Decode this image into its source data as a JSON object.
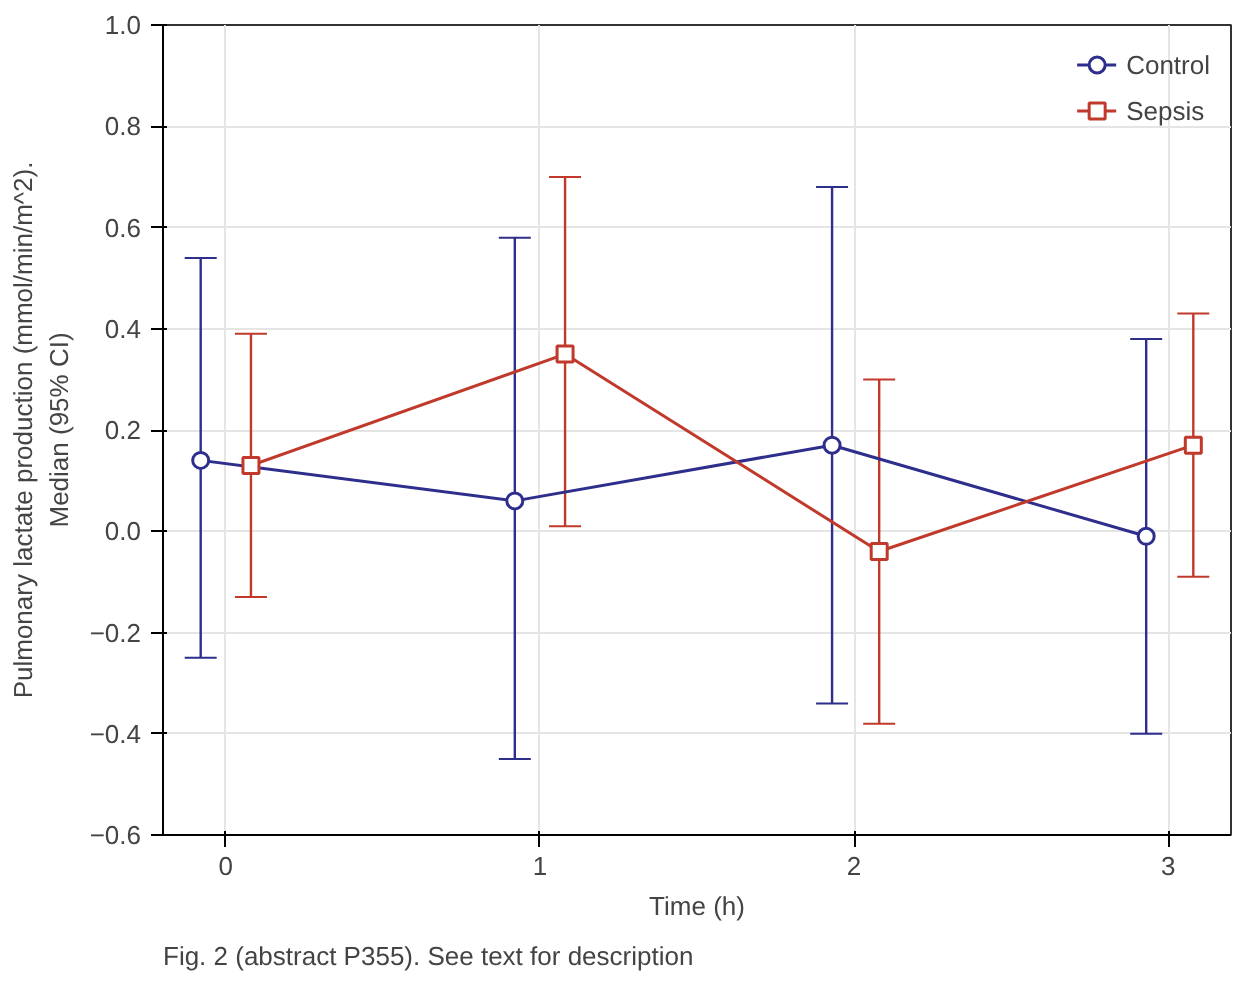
{
  "chart_data": {
    "type": "line",
    "xlabel": "Time (h)",
    "ylabel": "Pulmonary lactate production (mmol/min/m^2).\nMedian (95% CI)",
    "xlim": [
      -0.2,
      3.2
    ],
    "xticks": [
      0,
      1,
      2,
      3
    ],
    "ylim": [
      -0.6,
      1.0
    ],
    "yticks": [
      -0.6,
      -0.4,
      -0.2,
      {
        "value": 0,
        "label": "0.0"
      },
      0.2,
      0.4,
      0.6,
      0.8,
      {
        "value": 1,
        "label": "1.0"
      }
    ],
    "grid": true,
    "legend": "top right",
    "series": [
      {
        "name": "Control",
        "color": "#2e2e8c",
        "marker": "circle",
        "x": [
          -0.08,
          0.92,
          1.93,
          2.93
        ],
        "values": [
          0.14,
          0.06,
          0.17,
          -0.01
        ],
        "errors": [
          [
            -0.25,
            0.54
          ],
          [
            -0.45,
            0.58
          ],
          [
            -0.34,
            0.68
          ],
          [
            -0.4,
            0.38
          ]
        ]
      },
      {
        "name": "Sepsis",
        "color": "#c0392b",
        "marker": "square",
        "x": [
          0.08,
          1.08,
          2.08,
          3.08
        ],
        "values": [
          0.13,
          0.35,
          -0.04,
          0.17
        ],
        "errors": [
          [
            -0.13,
            0.39
          ],
          [
            0.01,
            0.7
          ],
          [
            -0.38,
            0.3
          ],
          [
            -0.09,
            0.43
          ]
        ]
      }
    ],
    "annotations": [
      "Fig. 2 (abstract P355). See text for description"
    ]
  }
}
